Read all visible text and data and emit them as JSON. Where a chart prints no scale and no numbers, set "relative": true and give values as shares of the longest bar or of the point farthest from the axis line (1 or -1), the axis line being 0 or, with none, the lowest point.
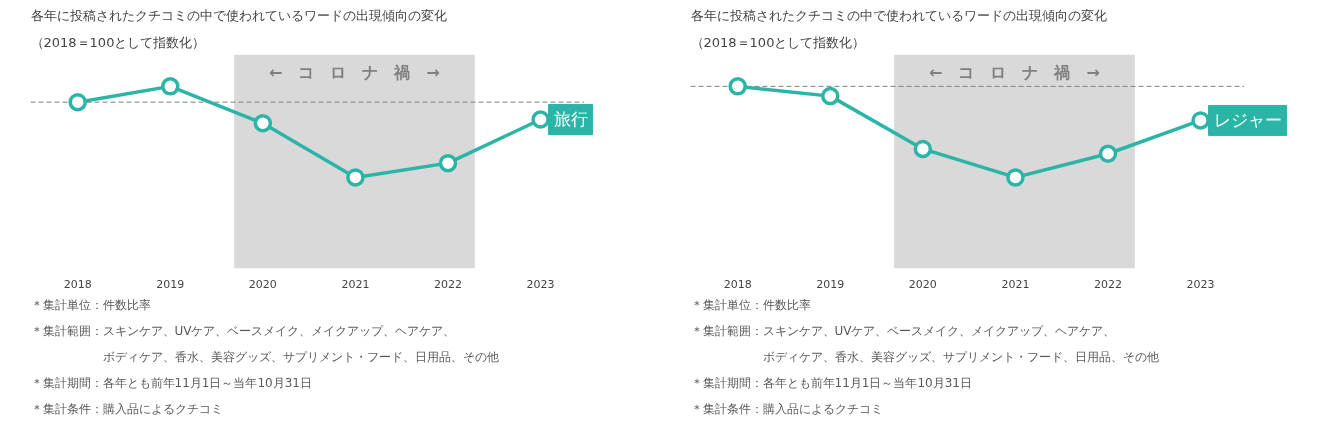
{
  "chart_data": [
    {
      "type": "line",
      "title": "各年に投稿されたクチコミの中で使われているワードの出現傾向の変化",
      "subtitle": "（2018＝100として指数化）",
      "relative": true,
      "x": [
        2018,
        2019,
        2020,
        2021,
        2022,
        2023
      ],
      "xlim": [
        2017.49,
        2023.47
      ],
      "xticks": [
        2018,
        2019,
        2020,
        2021,
        2022,
        2023
      ],
      "tick_labels": "x",
      "grid": false,
      "legend": false,
      "marker": "circle",
      "line_style": "solid",
      "series": [
        {
          "name": "旅行",
          "color": "#2bb5a7",
          "values": [
            0,
            0.21,
            -0.28,
            -1,
            -0.81,
            -0.23
          ]
        }
      ],
      "ref_lines": [
        {
          "axis": "y",
          "value": 0,
          "line_style": "dashed",
          "color": "#808080"
        }
      ],
      "bands": [
        {
          "axis": "x",
          "from": 2019.69,
          "to": 2022.29,
          "label": "←　コ　ロ　ナ　禍　→",
          "color": "#d9d9d9"
        }
      ],
      "annotations": [
        "＊集計単位：件数比率",
        "＊集計範囲：スキンケア、UVケア、ベースメイク、メイクアップ、ヘアケア、ボディケア、香水、美容グッズ、サプリメント・フード、日用品、その他",
        "＊集計期間：各年とも前年11月1日～当年10月31日",
        "＊集計条件：購入品によるクチコミ"
      ]
    },
    {
      "type": "line",
      "title": "各年に投稿されたクチコミの中で使われているワードの出現傾向の変化",
      "subtitle": "（2018＝100として指数化）",
      "relative": true,
      "x": [
        2018,
        2019,
        2020,
        2021,
        2022,
        2023
      ],
      "xlim": [
        2017.49,
        2023.47
      ],
      "xticks": [
        2018,
        2019,
        2020,
        2021,
        2022,
        2023
      ],
      "tick_labels": "x",
      "grid": false,
      "legend": false,
      "marker": "circle",
      "line_style": "solid",
      "series": [
        {
          "name": "レジャー",
          "color": "#2bb5a7",
          "values": [
            0,
            -0.107,
            -0.687,
            -1,
            -0.74,
            -0.374
          ]
        }
      ],
      "ref_lines": [
        {
          "axis": "y",
          "value": 0,
          "line_style": "dashed",
          "color": "#808080"
        }
      ],
      "bands": [
        {
          "axis": "x",
          "from": 2019.69,
          "to": 2022.29,
          "label": "←　コ　ロ　ナ　禍　→",
          "color": "#d9d9d9"
        }
      ],
      "annotations": [
        "＊集計単位：件数比率",
        "＊集計範囲：スキンケア、UVケア、ベースメイク、メイクアップ、ヘアケア、ボディケア、香水、美容グッズ、サプリメント・フード、日用品、その他",
        "＊集計期間：各年とも前年11月1日～当年10月31日",
        "＊集計条件：購入品によるクチコミ"
      ]
    }
  ]
}
